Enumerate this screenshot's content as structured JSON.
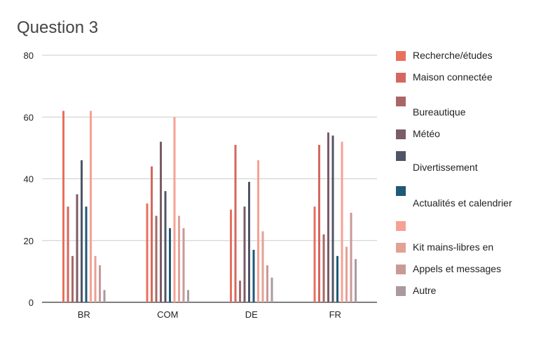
{
  "chart_data": {
    "type": "bar",
    "title": "Question 3",
    "xlabel": "",
    "ylabel": "",
    "ylim": [
      0,
      80
    ],
    "yticks": [
      0,
      20,
      40,
      60,
      80
    ],
    "grid": true,
    "legend_position": "right",
    "categories": [
      "BR",
      "COM",
      "DE",
      "FR"
    ],
    "series": [
      {
        "name": "Recherche/études",
        "color": "#e8705c",
        "values": [
          62,
          32,
          30,
          31
        ]
      },
      {
        "name": "Maison connectée",
        "color": "#d4675f",
        "values": [
          31,
          44,
          51,
          51
        ]
      },
      {
        "name": "Bureautique",
        "color": "#a86766",
        "values": [
          15,
          28,
          7,
          22
        ]
      },
      {
        "name": "Météo",
        "color": "#7c5c66",
        "values": [
          35,
          52,
          31,
          55
        ]
      },
      {
        "name": "Divertissement",
        "color": "#4f5567",
        "values": [
          46,
          36,
          39,
          54
        ]
      },
      {
        "name": "Actualités et calendrier",
        "color": "#1e5a78",
        "values": [
          31,
          24,
          17,
          15
        ]
      },
      {
        "name": "",
        "color": "#f6a194",
        "values": [
          62,
          60,
          46,
          52
        ]
      },
      {
        "name": "Kit mains-libres en",
        "color": "#e3a195",
        "values": [
          15,
          28,
          23,
          18
        ]
      },
      {
        "name": "Appels et messages",
        "color": "#c99996",
        "values": [
          12,
          24,
          12,
          29
        ]
      },
      {
        "name": "Autre",
        "color": "#aa9a9f",
        "values": [
          4,
          4,
          8,
          14
        ]
      }
    ]
  }
}
